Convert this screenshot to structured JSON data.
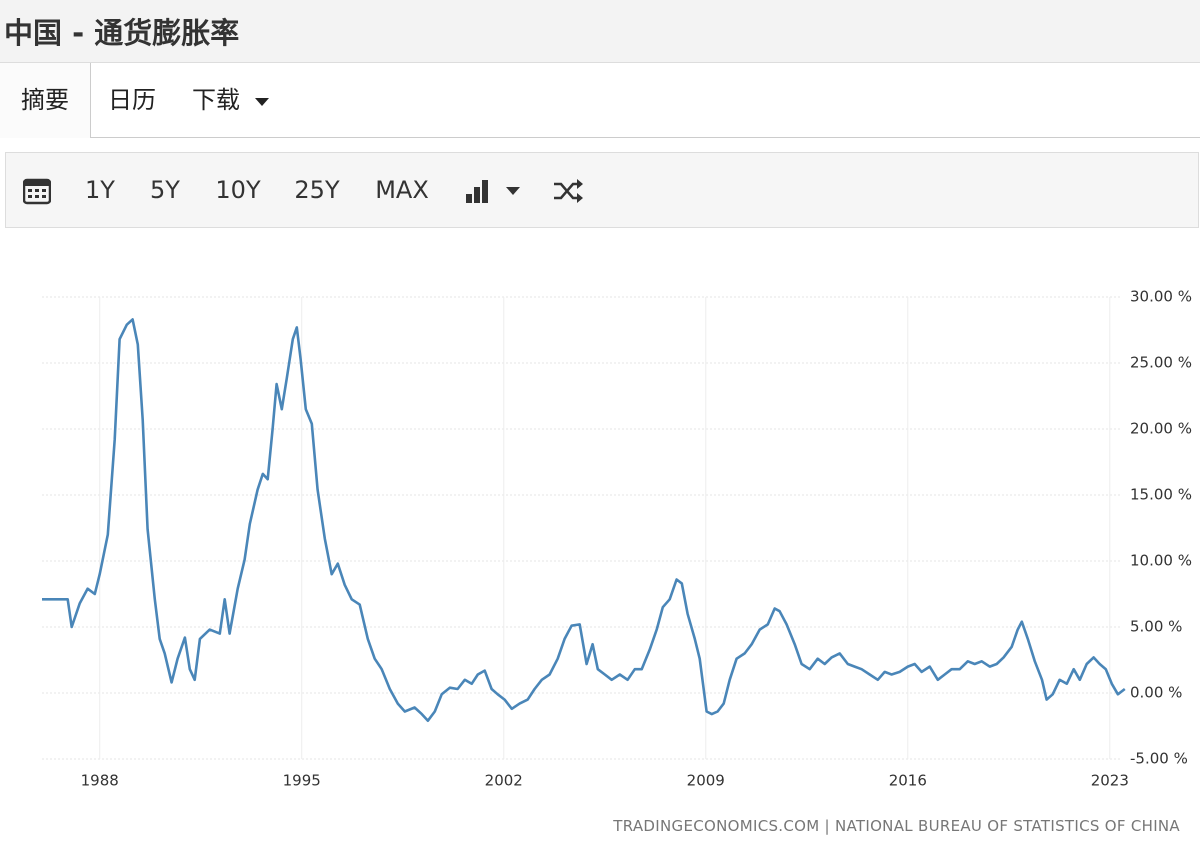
{
  "header": {
    "title": "中国 - 通货膨胀率"
  },
  "tabs": [
    "摘要",
    "日历",
    "下载"
  ],
  "toolbar": [
    "1Y",
    "5Y",
    "10Y",
    "25Y",
    "MAX"
  ],
  "chart_data": {
    "type": "line",
    "color": "#4a86b8",
    "grid": true,
    "x": [
      1986.0,
      1986.89,
      1987.03,
      1987.31,
      1987.58,
      1987.83,
      1988.0,
      1988.28,
      1988.52,
      1988.69,
      1988.94,
      1989.14,
      1989.32,
      1989.49,
      1989.66,
      1989.91,
      1990.08,
      1990.25,
      1990.49,
      1990.7,
      1990.95,
      1991.12,
      1991.29,
      1991.47,
      1991.81,
      1992.16,
      1992.33,
      1992.5,
      1992.78,
      1993.02,
      1993.2,
      1993.47,
      1993.65,
      1993.82,
      1993.99,
      1994.13,
      1994.31,
      1994.48,
      1994.69,
      1994.83,
      1994.96,
      1995.14,
      1995.35,
      1995.55,
      1995.8,
      1996.04,
      1996.25,
      1996.49,
      1996.73,
      1997.01,
      1997.29,
      1997.53,
      1997.77,
      1998.05,
      1998.33,
      1998.57,
      1998.91,
      1999.16,
      1999.37,
      1999.61,
      1999.85,
      2000.13,
      2000.4,
      2000.65,
      2000.89,
      2001.1,
      2001.34,
      2001.58,
      2001.79,
      2002.03,
      2002.28,
      2002.55,
      2002.83,
      2003.07,
      2003.32,
      2003.59,
      2003.87,
      2004.11,
      2004.35,
      2004.63,
      2004.87,
      2005.08,
      2005.26,
      2005.5,
      2005.74,
      2006.02,
      2006.29,
      2006.54,
      2006.78,
      2007.06,
      2007.3,
      2007.51,
      2007.75,
      2007.99,
      2008.17,
      2008.37,
      2008.62,
      2008.79,
      2009.03,
      2009.21,
      2009.41,
      2009.62,
      2009.83,
      2010.07,
      2010.35,
      2010.59,
      2010.87,
      2011.15,
      2011.39,
      2011.56,
      2011.8,
      2012.08,
      2012.32,
      2012.6,
      2012.88,
      2013.12,
      2013.36,
      2013.64,
      2013.92,
      2014.16,
      2014.4,
      2014.68,
      2014.96,
      2015.2,
      2015.44,
      2015.72,
      2016.0,
      2016.24,
      2016.48,
      2016.76,
      2017.04,
      2017.28,
      2017.52,
      2017.8,
      2018.08,
      2018.32,
      2018.56,
      2018.84,
      2019.08,
      2019.32,
      2019.6,
      2019.81,
      2019.95,
      2020.16,
      2020.4,
      2020.65,
      2020.81,
      2021.02,
      2021.26,
      2021.51,
      2021.75,
      2021.96,
      2022.2,
      2022.44,
      2022.65,
      2022.86,
      2023.07,
      2023.28,
      2023.52
    ],
    "values": [
      7.1,
      7.1,
      5.0,
      6.8,
      7.9,
      7.5,
      9.0,
      12.0,
      19.2,
      26.8,
      27.9,
      28.3,
      26.4,
      20.7,
      12.4,
      7.1,
      4.1,
      3.0,
      0.8,
      2.6,
      4.2,
      1.8,
      1.0,
      4.1,
      4.8,
      4.5,
      7.1,
      4.5,
      7.9,
      10.1,
      12.8,
      15.4,
      16.6,
      16.2,
      20.0,
      23.4,
      21.5,
      23.8,
      26.8,
      27.7,
      25.3,
      21.5,
      20.4,
      15.4,
      11.7,
      9.0,
      9.8,
      8.2,
      7.1,
      6.7,
      4.1,
      2.6,
      1.8,
      0.3,
      -0.8,
      -1.4,
      -1.1,
      -1.6,
      -2.1,
      -1.4,
      -0.1,
      0.4,
      0.3,
      1.0,
      0.7,
      1.4,
      1.7,
      0.3,
      -0.1,
      -0.5,
      -1.2,
      -0.8,
      -0.5,
      0.3,
      1.0,
      1.4,
      2.6,
      4.1,
      5.1,
      5.2,
      2.2,
      3.7,
      1.8,
      1.4,
      1.0,
      1.4,
      1.0,
      1.8,
      1.8,
      3.3,
      4.8,
      6.5,
      7.1,
      8.6,
      8.3,
      6.0,
      4.1,
      2.6,
      -1.4,
      -1.6,
      -1.4,
      -0.8,
      1.0,
      2.6,
      3.0,
      3.7,
      4.8,
      5.2,
      6.4,
      6.2,
      5.2,
      3.7,
      2.2,
      1.8,
      2.6,
      2.2,
      2.7,
      3.0,
      2.2,
      2.0,
      1.8,
      1.4,
      1.0,
      1.6,
      1.4,
      1.6,
      2.0,
      2.2,
      1.6,
      2.0,
      1.0,
      1.4,
      1.8,
      1.8,
      2.4,
      2.2,
      2.4,
      2.0,
      2.2,
      2.7,
      3.5,
      4.8,
      5.4,
      4.1,
      2.4,
      1.0,
      -0.5,
      -0.1,
      1.0,
      0.7,
      1.8,
      1.0,
      2.2,
      2.7,
      2.2,
      1.8,
      0.7,
      -0.1,
      0.3
    ],
    "xlim": [
      1986.0,
      2023.7
    ],
    "xticks": [
      1988,
      1995,
      2002,
      2009,
      2016,
      2023
    ],
    "ylim": [
      -5,
      30
    ],
    "yticks": [
      {
        "value": 30,
        "label": "30.00 %"
      },
      {
        "value": 25,
        "label": "25.00 %"
      },
      {
        "value": 20,
        "label": "20.00 %"
      },
      {
        "value": 15,
        "label": "15.00 %"
      },
      {
        "value": 10,
        "label": "10.00 %"
      },
      {
        "value": 5,
        "label": "5.00 %"
      },
      {
        "value": 0,
        "label": "0.00 %"
      },
      {
        "value": -5,
        "label": "-5.00 %"
      }
    ]
  },
  "source": "TRADINGECONOMICS.COM | NATIONAL BUREAU OF STATISTICS OF CHINA"
}
